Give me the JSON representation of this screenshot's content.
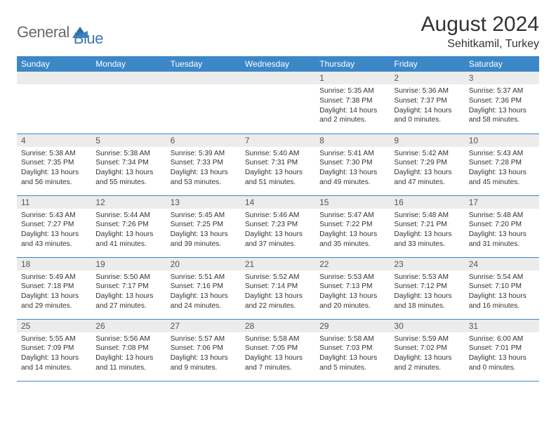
{
  "logo": {
    "part1": "General",
    "part2": "Blue"
  },
  "title": "August 2024",
  "subtitle": "Sehitkamil, Turkey",
  "colors": {
    "header_bg": "#3b87c8",
    "header_fg": "#ffffff",
    "daynum_bg": "#ececec",
    "border": "#3b87c8",
    "logo_gray": "#6a6a6a",
    "logo_blue": "#3b78b5"
  },
  "weekdays": [
    "Sunday",
    "Monday",
    "Tuesday",
    "Wednesday",
    "Thursday",
    "Friday",
    "Saturday"
  ],
  "weeks": [
    [
      {
        "n": "",
        "lines": [
          "",
          "",
          "",
          ""
        ]
      },
      {
        "n": "",
        "lines": [
          "",
          "",
          "",
          ""
        ]
      },
      {
        "n": "",
        "lines": [
          "",
          "",
          "",
          ""
        ]
      },
      {
        "n": "",
        "lines": [
          "",
          "",
          "",
          ""
        ]
      },
      {
        "n": "1",
        "lines": [
          "Sunrise: 5:35 AM",
          "Sunset: 7:38 PM",
          "Daylight: 14 hours",
          "and 2 minutes."
        ]
      },
      {
        "n": "2",
        "lines": [
          "Sunrise: 5:36 AM",
          "Sunset: 7:37 PM",
          "Daylight: 14 hours",
          "and 0 minutes."
        ]
      },
      {
        "n": "3",
        "lines": [
          "Sunrise: 5:37 AM",
          "Sunset: 7:36 PM",
          "Daylight: 13 hours",
          "and 58 minutes."
        ]
      }
    ],
    [
      {
        "n": "4",
        "lines": [
          "Sunrise: 5:38 AM",
          "Sunset: 7:35 PM",
          "Daylight: 13 hours",
          "and 56 minutes."
        ]
      },
      {
        "n": "5",
        "lines": [
          "Sunrise: 5:38 AM",
          "Sunset: 7:34 PM",
          "Daylight: 13 hours",
          "and 55 minutes."
        ]
      },
      {
        "n": "6",
        "lines": [
          "Sunrise: 5:39 AM",
          "Sunset: 7:33 PM",
          "Daylight: 13 hours",
          "and 53 minutes."
        ]
      },
      {
        "n": "7",
        "lines": [
          "Sunrise: 5:40 AM",
          "Sunset: 7:31 PM",
          "Daylight: 13 hours",
          "and 51 minutes."
        ]
      },
      {
        "n": "8",
        "lines": [
          "Sunrise: 5:41 AM",
          "Sunset: 7:30 PM",
          "Daylight: 13 hours",
          "and 49 minutes."
        ]
      },
      {
        "n": "9",
        "lines": [
          "Sunrise: 5:42 AM",
          "Sunset: 7:29 PM",
          "Daylight: 13 hours",
          "and 47 minutes."
        ]
      },
      {
        "n": "10",
        "lines": [
          "Sunrise: 5:43 AM",
          "Sunset: 7:28 PM",
          "Daylight: 13 hours",
          "and 45 minutes."
        ]
      }
    ],
    [
      {
        "n": "11",
        "lines": [
          "Sunrise: 5:43 AM",
          "Sunset: 7:27 PM",
          "Daylight: 13 hours",
          "and 43 minutes."
        ]
      },
      {
        "n": "12",
        "lines": [
          "Sunrise: 5:44 AM",
          "Sunset: 7:26 PM",
          "Daylight: 13 hours",
          "and 41 minutes."
        ]
      },
      {
        "n": "13",
        "lines": [
          "Sunrise: 5:45 AM",
          "Sunset: 7:25 PM",
          "Daylight: 13 hours",
          "and 39 minutes."
        ]
      },
      {
        "n": "14",
        "lines": [
          "Sunrise: 5:46 AM",
          "Sunset: 7:23 PM",
          "Daylight: 13 hours",
          "and 37 minutes."
        ]
      },
      {
        "n": "15",
        "lines": [
          "Sunrise: 5:47 AM",
          "Sunset: 7:22 PM",
          "Daylight: 13 hours",
          "and 35 minutes."
        ]
      },
      {
        "n": "16",
        "lines": [
          "Sunrise: 5:48 AM",
          "Sunset: 7:21 PM",
          "Daylight: 13 hours",
          "and 33 minutes."
        ]
      },
      {
        "n": "17",
        "lines": [
          "Sunrise: 5:48 AM",
          "Sunset: 7:20 PM",
          "Daylight: 13 hours",
          "and 31 minutes."
        ]
      }
    ],
    [
      {
        "n": "18",
        "lines": [
          "Sunrise: 5:49 AM",
          "Sunset: 7:18 PM",
          "Daylight: 13 hours",
          "and 29 minutes."
        ]
      },
      {
        "n": "19",
        "lines": [
          "Sunrise: 5:50 AM",
          "Sunset: 7:17 PM",
          "Daylight: 13 hours",
          "and 27 minutes."
        ]
      },
      {
        "n": "20",
        "lines": [
          "Sunrise: 5:51 AM",
          "Sunset: 7:16 PM",
          "Daylight: 13 hours",
          "and 24 minutes."
        ]
      },
      {
        "n": "21",
        "lines": [
          "Sunrise: 5:52 AM",
          "Sunset: 7:14 PM",
          "Daylight: 13 hours",
          "and 22 minutes."
        ]
      },
      {
        "n": "22",
        "lines": [
          "Sunrise: 5:53 AM",
          "Sunset: 7:13 PM",
          "Daylight: 13 hours",
          "and 20 minutes."
        ]
      },
      {
        "n": "23",
        "lines": [
          "Sunrise: 5:53 AM",
          "Sunset: 7:12 PM",
          "Daylight: 13 hours",
          "and 18 minutes."
        ]
      },
      {
        "n": "24",
        "lines": [
          "Sunrise: 5:54 AM",
          "Sunset: 7:10 PM",
          "Daylight: 13 hours",
          "and 16 minutes."
        ]
      }
    ],
    [
      {
        "n": "25",
        "lines": [
          "Sunrise: 5:55 AM",
          "Sunset: 7:09 PM",
          "Daylight: 13 hours",
          "and 14 minutes."
        ]
      },
      {
        "n": "26",
        "lines": [
          "Sunrise: 5:56 AM",
          "Sunset: 7:08 PM",
          "Daylight: 13 hours",
          "and 11 minutes."
        ]
      },
      {
        "n": "27",
        "lines": [
          "Sunrise: 5:57 AM",
          "Sunset: 7:06 PM",
          "Daylight: 13 hours",
          "and 9 minutes."
        ]
      },
      {
        "n": "28",
        "lines": [
          "Sunrise: 5:58 AM",
          "Sunset: 7:05 PM",
          "Daylight: 13 hours",
          "and 7 minutes."
        ]
      },
      {
        "n": "29",
        "lines": [
          "Sunrise: 5:58 AM",
          "Sunset: 7:03 PM",
          "Daylight: 13 hours",
          "and 5 minutes."
        ]
      },
      {
        "n": "30",
        "lines": [
          "Sunrise: 5:59 AM",
          "Sunset: 7:02 PM",
          "Daylight: 13 hours",
          "and 2 minutes."
        ]
      },
      {
        "n": "31",
        "lines": [
          "Sunrise: 6:00 AM",
          "Sunset: 7:01 PM",
          "Daylight: 13 hours",
          "and 0 minutes."
        ]
      }
    ]
  ]
}
